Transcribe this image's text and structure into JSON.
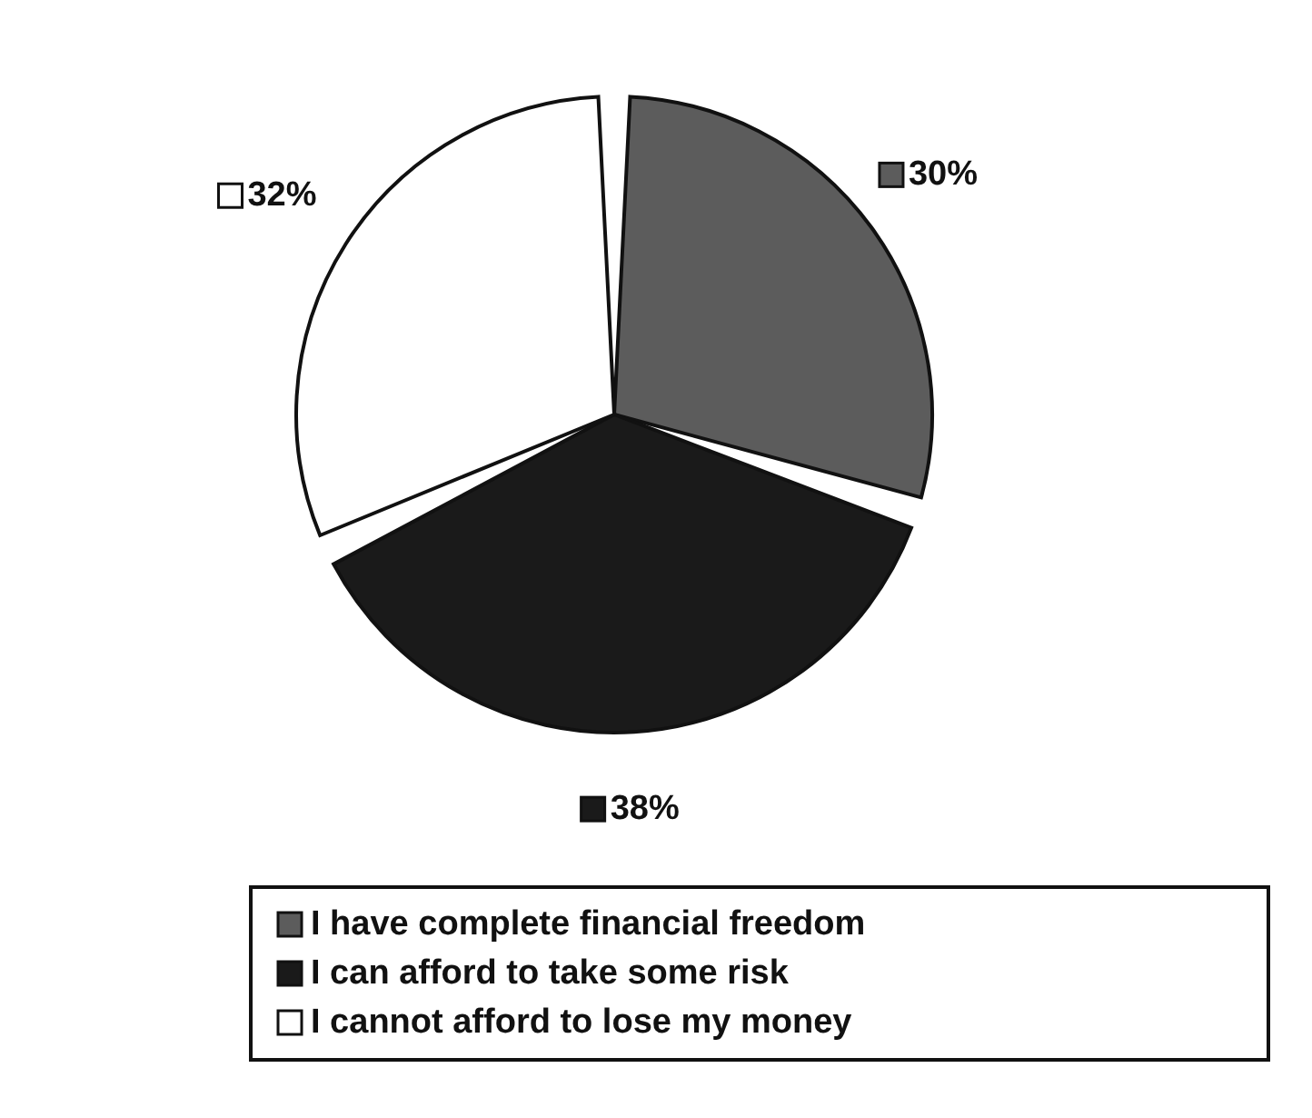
{
  "chart_data": {
    "type": "pie",
    "categories": [
      "I have complete financial freedom",
      "I can afford to take some risk",
      "I cannot afford to lose my money"
    ],
    "values": [
      30,
      38,
      32
    ],
    "colors": [
      "#5c5c5c",
      "#1a1a1a",
      "#ffffff"
    ],
    "value_labels": [
      "30%",
      "38%",
      "32%"
    ],
    "legend": "bottom"
  }
}
